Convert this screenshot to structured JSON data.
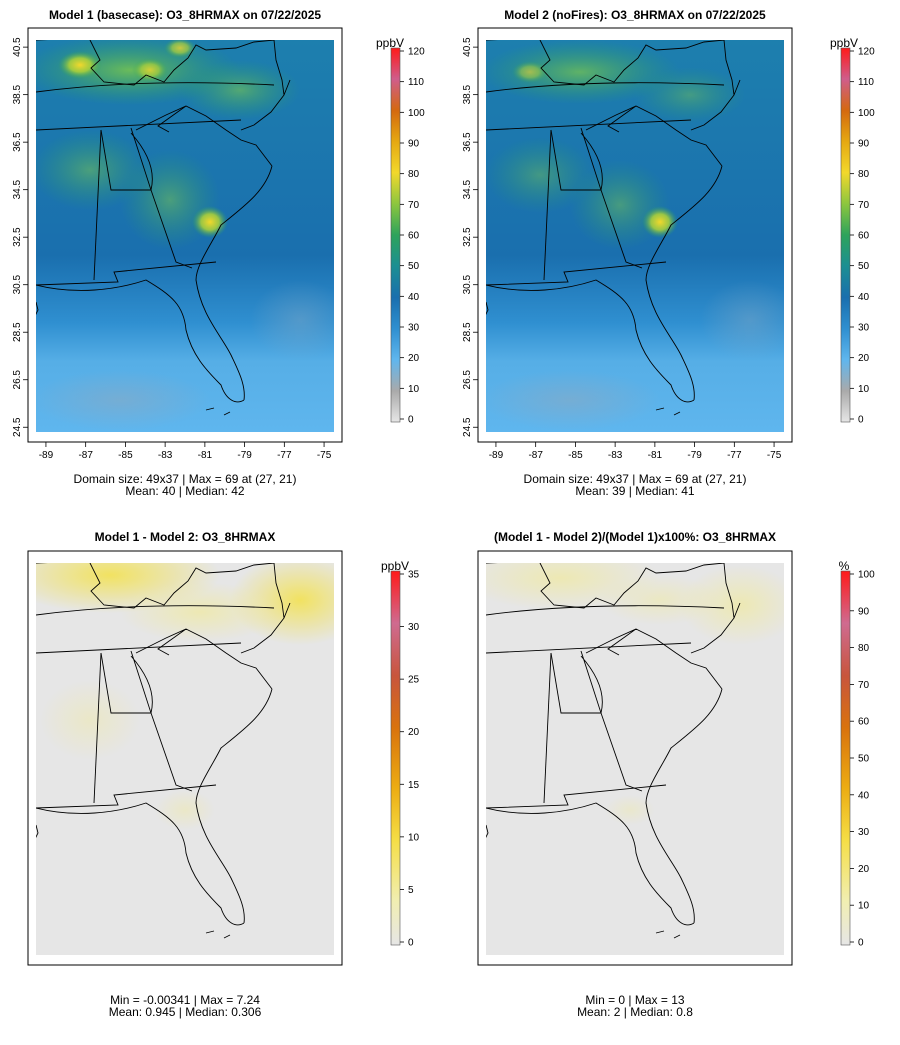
{
  "chart_data": [
    {
      "type": "heatmap",
      "title": "Model 1 (basecase): O3_8HRMAX on 07/22/2025",
      "lon_ticks": [
        "-89",
        "-87",
        "-85",
        "-83",
        "-81",
        "-79",
        "-77",
        "-75"
      ],
      "lat_ticks": [
        "40.5",
        "38.5",
        "36.5",
        "34.5",
        "32.5",
        "30.5",
        "28.5",
        "26.5",
        "24.5"
      ],
      "xlim": [
        -89.5,
        -74.5
      ],
      "ylim": [
        24.3,
        40.8
      ],
      "colorbar": {
        "unit": "ppbV",
        "ticks": [
          "0",
          "10",
          "20",
          "30",
          "40",
          "50",
          "60",
          "70",
          "80",
          "90",
          "100",
          "110",
          "120"
        ],
        "range": [
          0,
          120
        ]
      },
      "stats": {
        "line1": "Domain size: 49x37 | Max = 69 at (27, 21)",
        "line2": "Mean: 40 |  Median: 42"
      },
      "field": {
        "background": 36,
        "ocean_south": 22,
        "max": 69,
        "mean": 40,
        "median": 42
      }
    },
    {
      "type": "heatmap",
      "title": "Model 2 (noFires): O3_8HRMAX on 07/22/2025",
      "lon_ticks": [
        "-89",
        "-87",
        "-85",
        "-83",
        "-81",
        "-79",
        "-77",
        "-75"
      ],
      "lat_ticks": [
        "40.5",
        "38.5",
        "36.5",
        "34.5",
        "32.5",
        "30.5",
        "28.5",
        "26.5",
        "24.5"
      ],
      "xlim": [
        -89.5,
        -74.5
      ],
      "ylim": [
        24.3,
        40.8
      ],
      "colorbar": {
        "unit": "ppbV",
        "ticks": [
          "0",
          "10",
          "20",
          "30",
          "40",
          "50",
          "60",
          "70",
          "80",
          "90",
          "100",
          "110",
          "120"
        ],
        "range": [
          0,
          120
        ]
      },
      "stats": {
        "line1": "Domain size: 49x37 | Max = 69 at (27, 21)",
        "line2": "Mean: 39 |  Median: 41"
      },
      "field": {
        "background": 35,
        "ocean_south": 22,
        "max": 69,
        "mean": 39,
        "median": 41
      }
    },
    {
      "type": "heatmap",
      "title": "Model 1 - Model 2: O3_8HRMAX",
      "colorbar": {
        "unit": "ppbV",
        "ticks": [
          "0",
          "5",
          "10",
          "15",
          "20",
          "25",
          "30",
          "35"
        ],
        "range": [
          0,
          35
        ]
      },
      "stats": {
        "line1": "Min = -0.00341 | Max = 7.24",
        "line2": "Mean: 0.945 |  Median: 0.306"
      },
      "field": {
        "min": -0.00341,
        "max": 7.24,
        "mean": 0.945,
        "median": 0.306
      }
    },
    {
      "type": "heatmap",
      "title": "(Model 1 - Model 2)/(Model 1)x100%: O3_8HRMAX",
      "colorbar": {
        "unit": "%",
        "ticks": [
          "0",
          "10",
          "20",
          "30",
          "40",
          "50",
          "60",
          "70",
          "80",
          "90",
          "100"
        ],
        "range": [
          0,
          100
        ]
      },
      "stats": {
        "line1": "Min = 0 | Max = 13",
        "line2": "Mean: 2 |  Median: 0.8"
      },
      "field": {
        "min": 0,
        "max": 13,
        "mean": 2,
        "median": 0.8
      }
    }
  ],
  "colors": {
    "palette": [
      "#e6e6e6",
      "#aaaaaa",
      "#5fb6ee",
      "#2f8fd0",
      "#1a6fae",
      "#1c8f92",
      "#2ea35b",
      "#8cc63e",
      "#f2d82c",
      "#e5a812",
      "#d4690f",
      "#cf5d8c",
      "#ff1a1a"
    ],
    "diff_palette": [
      "#e6e6e6",
      "#f1eeb0",
      "#f5de46",
      "#ecac12",
      "#d9730d",
      "#c8553c",
      "#cf6b90",
      "#ff1a1a"
    ]
  }
}
